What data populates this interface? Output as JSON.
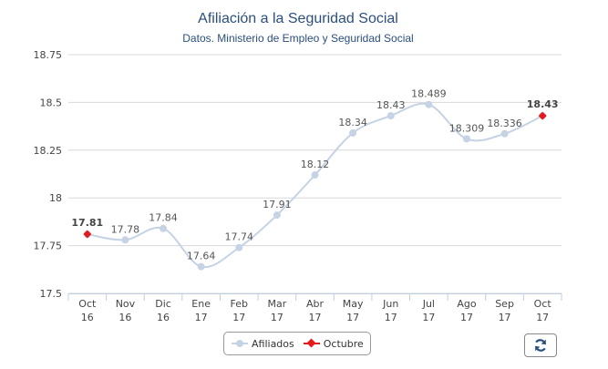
{
  "chart_data": {
    "type": "line",
    "title": "Afiliación a la Seguridad Social",
    "subtitle": "Datos. Ministerio de Empleo y Seguridad Social",
    "categories": [
      [
        "Oct",
        "16"
      ],
      [
        "Nov",
        "16"
      ],
      [
        "Dic",
        "16"
      ],
      [
        "Ene",
        "17"
      ],
      [
        "Feb",
        "17"
      ],
      [
        "Mar",
        "17"
      ],
      [
        "Abr",
        "17"
      ],
      [
        "May",
        "17"
      ],
      [
        "Jun",
        "17"
      ],
      [
        "Jul",
        "17"
      ],
      [
        "Ago",
        "17"
      ],
      [
        "Sep",
        "17"
      ],
      [
        "Oct",
        "17"
      ]
    ],
    "ylim": [
      17.5,
      18.75
    ],
    "yticks": [
      "17.5",
      "17.75",
      "18",
      "18.25",
      "18.5",
      "18.75"
    ],
    "grid": true,
    "legend_placement": "bottom-center",
    "series": [
      {
        "name": "Afiliados",
        "color": "#c5d3e4",
        "values": [
          17.81,
          17.78,
          17.84,
          17.64,
          17.74,
          17.91,
          18.12,
          18.34,
          18.43,
          18.489,
          18.309,
          18.336,
          18.43
        ],
        "labels": [
          "17.81",
          "17.78",
          "17.84",
          "17.64",
          "17.74",
          "17.91",
          "18.12",
          "18.34",
          "18.43",
          "18.489",
          "18.309",
          "18.336",
          "18.43"
        ]
      },
      {
        "name": "Octubre",
        "color": "#e41a1c",
        "points": [
          {
            "index": 0,
            "value": 17.81,
            "label": "17.81"
          },
          {
            "index": 12,
            "value": 18.43,
            "label": "18.43"
          }
        ]
      }
    ]
  },
  "controls": {
    "refresh_icon": "refresh-icon"
  }
}
